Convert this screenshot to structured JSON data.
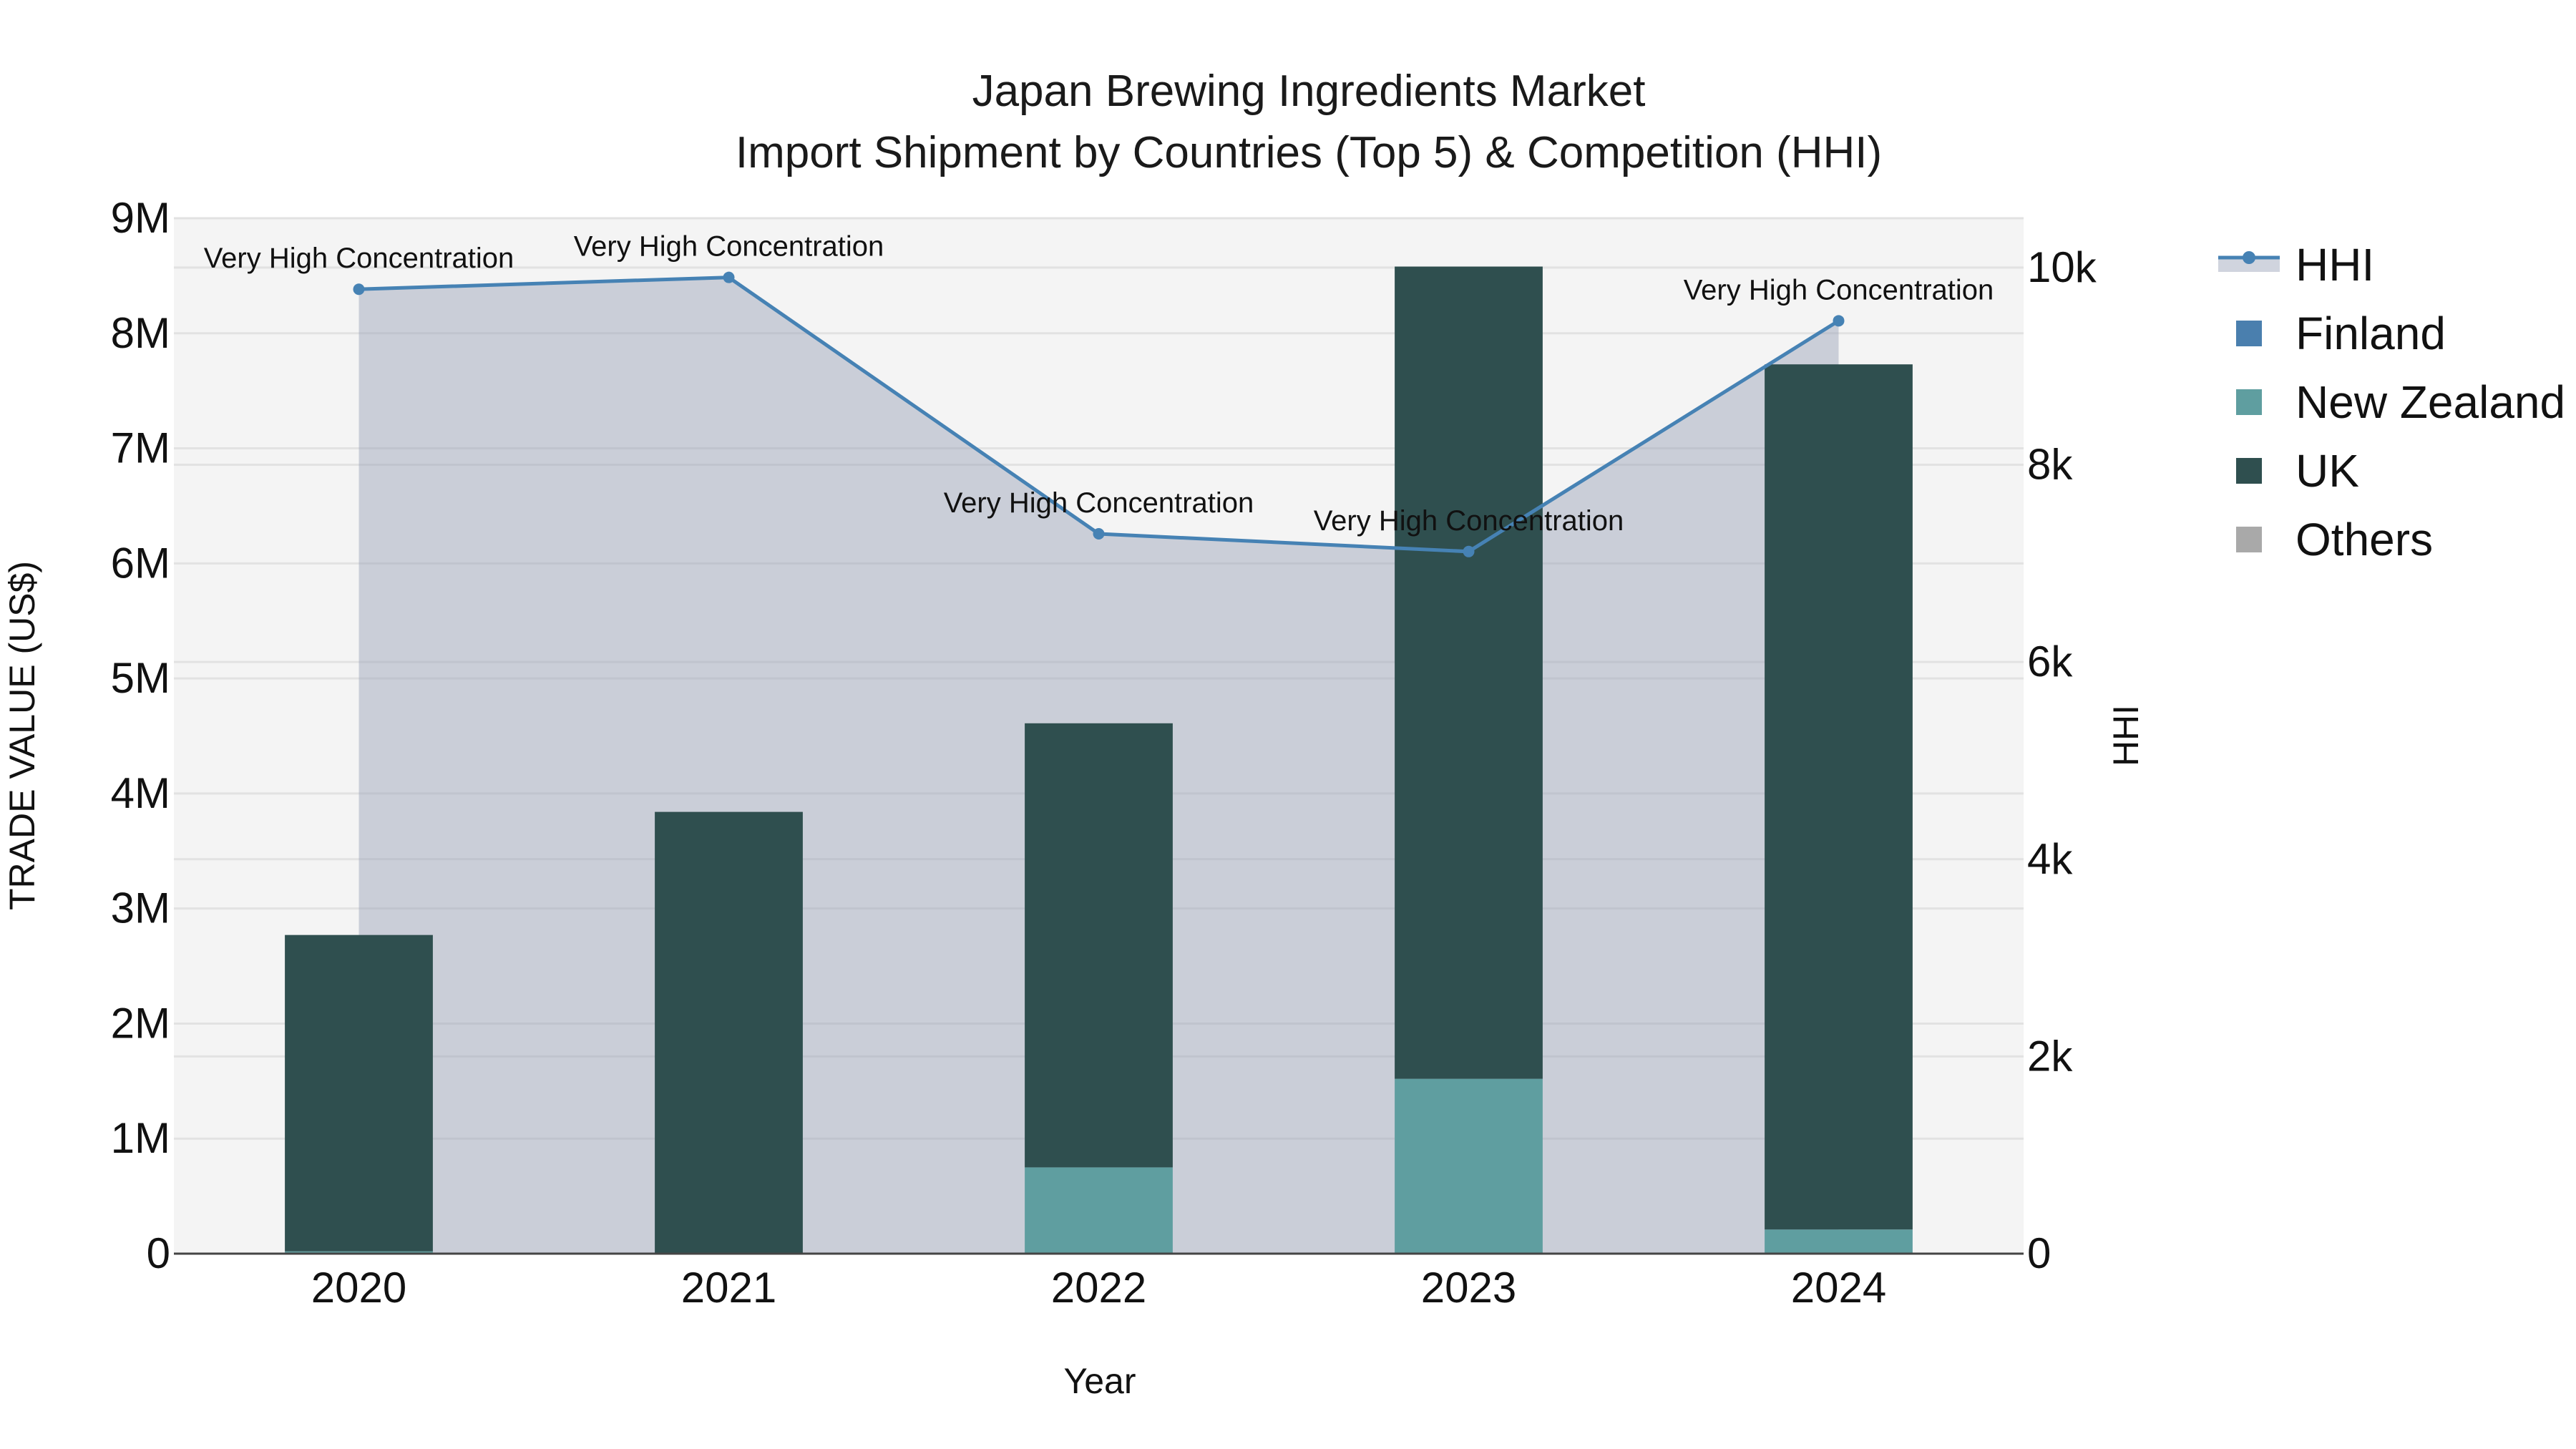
{
  "chart_data": {
    "type": "bar",
    "title": "Japan Brewing Ingredients Market",
    "subtitle": "Import Shipment by Countries (Top 5) & Competition (HHI)",
    "xlabel": "Year",
    "ylabel": "TRADE VALUE (US$)",
    "y2label": "HHI",
    "categories": [
      "2020",
      "2021",
      "2022",
      "2023",
      "2024"
    ],
    "ylim": [
      0,
      9000000
    ],
    "y2lim": [
      0,
      10500
    ],
    "yticks": [
      {
        "value": 0,
        "label": "0"
      },
      {
        "value": 1000000,
        "label": "1M"
      },
      {
        "value": 2000000,
        "label": "2M"
      },
      {
        "value": 3000000,
        "label": "3M"
      },
      {
        "value": 4000000,
        "label": "4M"
      },
      {
        "value": 5000000,
        "label": "5M"
      },
      {
        "value": 6000000,
        "label": "6M"
      },
      {
        "value": 7000000,
        "label": "7M"
      },
      {
        "value": 8000000,
        "label": "8M"
      },
      {
        "value": 9000000,
        "label": "9M"
      }
    ],
    "y2ticks": [
      {
        "value": 0,
        "label": "0"
      },
      {
        "value": 2000,
        "label": "2k"
      },
      {
        "value": 4000,
        "label": "4k"
      },
      {
        "value": 6000,
        "label": "6k"
      },
      {
        "value": 8000,
        "label": "8k"
      },
      {
        "value": 10000,
        "label": "10k"
      }
    ],
    "series": [
      {
        "name": "Finland",
        "color": "#4a7fae",
        "values": [
          0,
          0,
          0,
          0,
          0
        ]
      },
      {
        "name": "New Zealand",
        "color": "#5f9ea0",
        "values": [
          20000,
          0,
          750000,
          1520000,
          210000
        ]
      },
      {
        "name": "UK",
        "color": "#2f4f4f",
        "values": [
          2750000,
          3840000,
          3860000,
          7060000,
          7520000
        ]
      },
      {
        "name": "Others",
        "color": "#a9a9a9",
        "values": [
          0,
          0,
          0,
          0,
          0
        ]
      }
    ],
    "hhi": {
      "name": "HHI",
      "color": "#4682b4",
      "values": [
        9780,
        9900,
        7300,
        7120,
        9460
      ],
      "labels": [
        "Very High Concentration",
        "Very High Concentration",
        "Very High Concentration",
        "Very High Concentration",
        "Very High Concentration"
      ]
    },
    "legend": [
      "HHI",
      "Finland",
      "New Zealand",
      "UK",
      "Others"
    ],
    "legend_position": "right"
  }
}
